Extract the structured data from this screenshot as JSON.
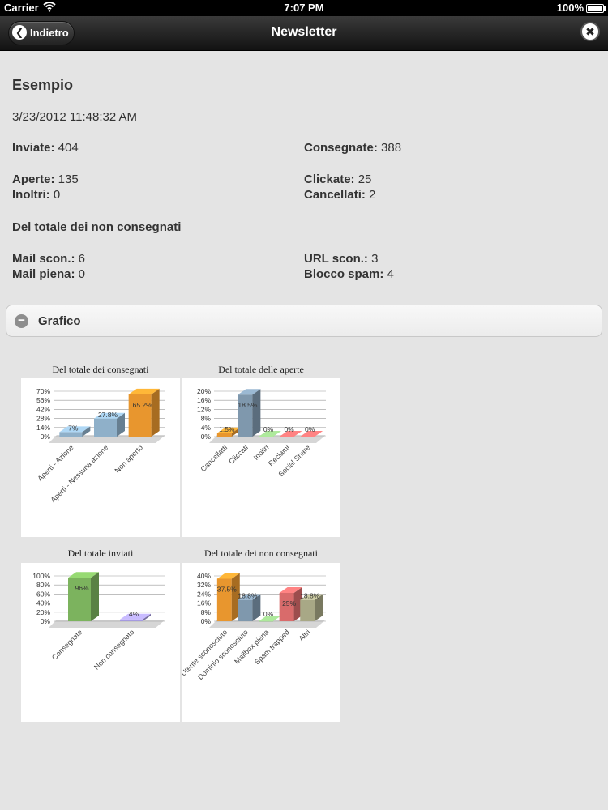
{
  "statusbar": {
    "carrier": "Carrier",
    "time": "7:07 PM",
    "battery": "100%"
  },
  "navbar": {
    "back_label": "Indietro",
    "title": "Newsletter"
  },
  "info": {
    "heading": "Esempio",
    "date": "3/23/2012 11:48:32 AM",
    "inviate_label": "Inviate:",
    "inviate_value": " 404",
    "consegnate_label": "Consegnate:",
    "consegnate_value": " 388",
    "aperte_label": "Aperte:",
    "aperte_value": " 135",
    "clickate_label": "Clickate:",
    "clickate_value": " 25",
    "inoltri_label": "Inoltri:",
    "inoltri_value": " 0",
    "cancellati_label": "Cancellati:",
    "cancellati_value": " 2",
    "subhead": "Del totale dei non consegnati",
    "mail_scon_label": "Mail scon.:",
    "mail_scon_value": " 6",
    "url_scon_label": "URL scon.:",
    "url_scon_value": " 3",
    "mail_piena_label": "Mail piena:",
    "mail_piena_value": " 0",
    "blocco_spam_label": "Blocco spam:",
    "blocco_spam_value": " 4"
  },
  "panel": {
    "label": "Grafico"
  },
  "chart_data": [
    {
      "type": "bar",
      "title": "Del totale dei consegnati",
      "categories": [
        "Aperti - Azione",
        "Aperti - Nessuna azione",
        "Non aperto"
      ],
      "values": [
        7,
        27.8,
        65.2
      ],
      "value_labels": [
        "7%",
        "27.8%",
        "65.2%"
      ],
      "colors": [
        "#8fb0c9",
        "#8fb0c9",
        "#e8962e"
      ],
      "yticks": [
        "0%",
        "14%",
        "28%",
        "42%",
        "56%",
        "70%"
      ],
      "ylim": [
        0,
        70
      ]
    },
    {
      "type": "bar",
      "title": "Del totale delle aperte",
      "categories": [
        "Cancellatti",
        "Cliccati",
        "Inoltri",
        "Reclami",
        "Social Share"
      ],
      "values": [
        1.5,
        18.5,
        0,
        0,
        0
      ],
      "value_labels": [
        "1.5%",
        "18.5%",
        "0%",
        "0%",
        "0%"
      ],
      "colors": [
        "#e8962e",
        "#7f98ad",
        "#8fbf80",
        "#d96b6b",
        "#d96b6b"
      ],
      "yticks": [
        "0%",
        "4%",
        "8%",
        "12%",
        "16%",
        "20%"
      ],
      "ylim": [
        0,
        20
      ]
    },
    {
      "type": "bar",
      "title": "Del totale inviati",
      "categories": [
        "Consegnate",
        "Non consegnato"
      ],
      "values": [
        96,
        4
      ],
      "value_labels": [
        "96%",
        "4%"
      ],
      "colors": [
        "#7cb35e",
        "#a59ae0"
      ],
      "yticks": [
        "0%",
        "20%",
        "40%",
        "60%",
        "80%",
        "100%"
      ],
      "ylim": [
        0,
        100
      ]
    },
    {
      "type": "bar",
      "title": "Del totale dei non consegnati",
      "categories": [
        "Utente sconosciuto",
        "Dominio sconosciuto",
        "Mailbox piena",
        "Spam trapped",
        "Altri"
      ],
      "values": [
        37.5,
        18.8,
        0,
        25,
        18.8
      ],
      "value_labels": [
        "37.5%",
        "18.8%",
        "0%",
        "25%",
        "18.8%"
      ],
      "colors": [
        "#e8962e",
        "#7f98ad",
        "#8fbf80",
        "#d96b6b",
        "#a8a886"
      ],
      "yticks": [
        "0%",
        "8%",
        "16%",
        "24%",
        "32%",
        "40%"
      ],
      "ylim": [
        0,
        40
      ]
    }
  ]
}
